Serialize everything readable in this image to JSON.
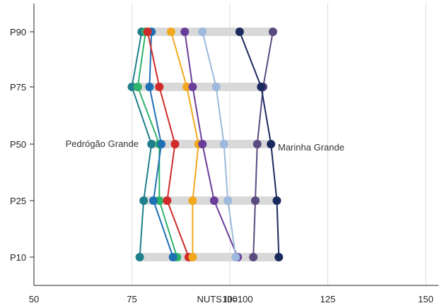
{
  "chart_data": {
    "type": "dot-plot",
    "xlabel": "NUTS III=100",
    "ylabel": "",
    "xlim": [
      50,
      150
    ],
    "x_ticks": [
      "50",
      "75",
      "100",
      "125",
      "150"
    ],
    "categories": [
      "P90",
      "P75",
      "P50",
      "P25",
      "P10"
    ],
    "grid": "vertical",
    "band_color": "#d9d9d9",
    "annotations": [
      {
        "text": "Pedrógão Grande",
        "near_category": "P50",
        "side": "left"
      },
      {
        "text": "Marinha Grande",
        "near_category": "P50",
        "side": "right"
      }
    ],
    "series": [
      {
        "color": "#1f7f8c",
        "values": [
          77.5,
          75.0,
          80.0,
          78.0,
          77.0
        ]
      },
      {
        "color": "#2db36a",
        "values": [
          78.5,
          76.5,
          82.0,
          82.0,
          86.5
        ]
      },
      {
        "color": "#1f6fb5",
        "values": [
          80.0,
          79.5,
          82.5,
          80.5,
          85.5
        ]
      },
      {
        "color": "#d12a2a",
        "values": [
          79.0,
          82.0,
          86.0,
          84.0,
          89.5
        ]
      },
      {
        "color": "#f2a81d",
        "values": [
          85.0,
          89.0,
          92.0,
          90.5,
          90.5
        ]
      },
      {
        "color": "#6a3d9a",
        "values": [
          88.5,
          90.5,
          93.0,
          96.0,
          102.0
        ]
      },
      {
        "color": "#9db9dc",
        "values": [
          93.0,
          96.5,
          98.5,
          99.5,
          101.5
        ]
      },
      {
        "color": "#5a4a80",
        "values": [
          111.0,
          108.5,
          107.0,
          106.5,
          106.0
        ]
      },
      {
        "color": "#1b2a5e",
        "values": [
          102.5,
          108.0,
          110.5,
          112.0,
          112.5
        ]
      }
    ]
  }
}
